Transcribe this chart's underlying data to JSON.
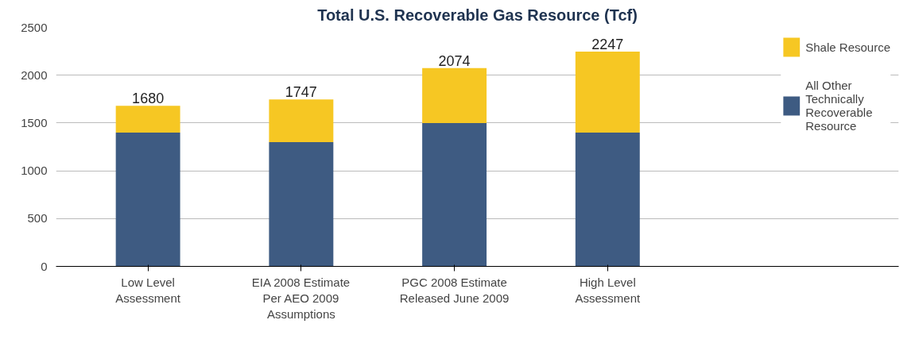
{
  "chart_data": {
    "type": "bar",
    "title": "Total U.S. Recoverable Gas Resource (Tcf)",
    "categories": [
      "Low Level Assessment",
      "EIA 2008 Estimate Per AEO 2009 Assumptions",
      "PGC 2008 Estimate Released June 2009",
      "High Level Assessment"
    ],
    "stacked": true,
    "series": [
      {
        "name": "All Other Technically Recoverable Resource",
        "color": "#3e5b82",
        "values": [
          1400,
          1300,
          1500,
          1400
        ]
      },
      {
        "name": "Shale Resource",
        "color": "#f6c723",
        "values": [
          280,
          447,
          574,
          847
        ]
      }
    ],
    "totals": [
      "1680",
      "1747",
      "2074",
      "2247"
    ],
    "ylim": [
      0,
      2500
    ],
    "yticks": [
      0,
      500,
      1000,
      1500,
      2000,
      2500
    ],
    "grid": "y",
    "legend": "right"
  }
}
